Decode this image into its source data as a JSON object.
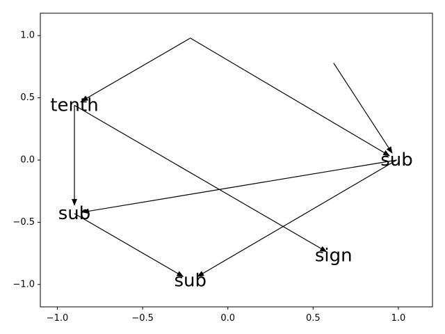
{
  "chart_data": {
    "type": "network",
    "xlim": [
      -1.1,
      1.2
    ],
    "ylim": [
      -1.18,
      1.18
    ],
    "x_ticks": [
      -1.0,
      -0.5,
      0.0,
      0.5,
      1.0
    ],
    "x_tick_labels": [
      "−1.0",
      "−0.5",
      "0.0",
      "0.5",
      "1.0"
    ],
    "y_ticks": [
      1.0,
      0.5,
      0.0,
      -0.5,
      -1.0
    ],
    "y_tick_labels": [
      "1.0",
      "0.5",
      "0.0",
      "−0.5",
      "−1.0"
    ],
    "nodes": [
      {
        "id": "n_tenth",
        "label": "tenth",
        "x": -0.9,
        "y": 0.44
      },
      {
        "id": "n_sub_left",
        "label": "sub",
        "x": -0.9,
        "y": -0.43
      },
      {
        "id": "n_sub_right",
        "label": "sub",
        "x": 0.99,
        "y": 0.0
      },
      {
        "id": "n_sub_bottom",
        "label": "sub",
        "x": -0.22,
        "y": -0.97
      },
      {
        "id": "n_sign",
        "label": "sign",
        "x": 0.62,
        "y": -0.77
      },
      {
        "id": "n_top",
        "label": "",
        "x": -0.22,
        "y": 0.98
      },
      {
        "id": "n_right_top",
        "label": "",
        "x": 0.62,
        "y": 0.78
      }
    ],
    "edges": [
      {
        "from": "n_top",
        "to": "n_tenth"
      },
      {
        "from": "n_top",
        "to": "n_sub_right"
      },
      {
        "from": "n_right_top",
        "to": "n_sub_right"
      },
      {
        "from": "n_tenth",
        "to": "n_sub_left"
      },
      {
        "from": "n_tenth",
        "to": "n_sign"
      },
      {
        "from": "n_sub_right",
        "to": "n_sub_left"
      },
      {
        "from": "n_sub_right",
        "to": "n_sub_bottom"
      },
      {
        "from": "n_sub_left",
        "to": "n_sub_bottom"
      }
    ]
  }
}
